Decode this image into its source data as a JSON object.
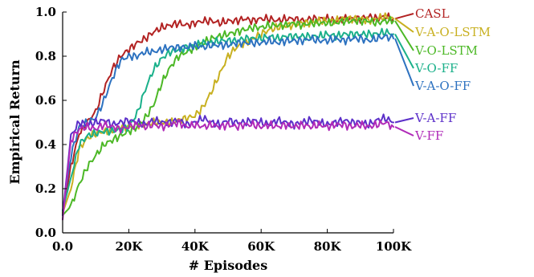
{
  "chart_data": {
    "type": "line",
    "title": "",
    "xlabel": "# Episodes",
    "ylabel": "Empirical Return",
    "xlim": [
      0,
      100000
    ],
    "ylim": [
      0,
      1.0
    ],
    "x_ticks": [
      0,
      20000,
      40000,
      60000,
      80000,
      100000
    ],
    "x_tick_labels": [
      "0.0",
      "20K",
      "40K",
      "60K",
      "80K",
      "100K"
    ],
    "y_ticks": [
      0,
      0.2,
      0.4,
      0.6,
      0.8,
      1.0
    ],
    "y_tick_labels": [
      "0.0",
      "0.2",
      "0.4",
      "0.6",
      "0.8",
      "1.0"
    ],
    "grid": false,
    "legend_placement": "right",
    "x": [
      0,
      2500,
      5000,
      7500,
      10000,
      12500,
      15000,
      17500,
      20000,
      22500,
      25000,
      27500,
      30000,
      32500,
      35000,
      37500,
      40000,
      42500,
      45000,
      47500,
      50000,
      52500,
      55000,
      57500,
      60000,
      62500,
      65000,
      67500,
      70000,
      72500,
      75000,
      77500,
      80000,
      82500,
      85000,
      87500,
      90000,
      92500,
      95000,
      97500,
      100000
    ],
    "series": [
      {
        "name": "CASL",
        "color": "#b22222",
        "values": [
          0.09,
          0.3,
          0.45,
          0.5,
          0.55,
          0.65,
          0.74,
          0.8,
          0.83,
          0.86,
          0.88,
          0.91,
          0.93,
          0.94,
          0.95,
          0.94,
          0.95,
          0.96,
          0.96,
          0.95,
          0.96,
          0.96,
          0.97,
          0.96,
          0.97,
          0.97,
          0.96,
          0.97,
          0.97,
          0.96,
          0.97,
          0.97,
          0.97,
          0.96,
          0.97,
          0.97,
          0.97,
          0.98,
          0.97,
          0.98,
          0.97
        ]
      },
      {
        "name": "V-A-O-LSTM",
        "color": "#c8b020",
        "values": [
          0.09,
          0.2,
          0.38,
          0.43,
          0.45,
          0.46,
          0.46,
          0.48,
          0.48,
          0.49,
          0.49,
          0.5,
          0.5,
          0.5,
          0.51,
          0.52,
          0.53,
          0.57,
          0.64,
          0.72,
          0.8,
          0.84,
          0.86,
          0.88,
          0.9,
          0.92,
          0.93,
          0.94,
          0.94,
          0.95,
          0.95,
          0.96,
          0.96,
          0.96,
          0.97,
          0.97,
          0.97,
          0.96,
          0.97,
          0.98,
          0.97
        ]
      },
      {
        "name": "V-O-LSTM",
        "color": "#4cb826",
        "values": [
          0.08,
          0.12,
          0.22,
          0.3,
          0.35,
          0.4,
          0.42,
          0.44,
          0.46,
          0.48,
          0.52,
          0.58,
          0.68,
          0.75,
          0.8,
          0.82,
          0.84,
          0.86,
          0.88,
          0.89,
          0.9,
          0.91,
          0.92,
          0.93,
          0.93,
          0.94,
          0.94,
          0.94,
          0.95,
          0.94,
          0.95,
          0.95,
          0.95,
          0.95,
          0.96,
          0.96,
          0.96,
          0.96,
          0.95,
          0.96,
          0.96
        ]
      },
      {
        "name": "V-O-FF",
        "color": "#1ab08a",
        "values": [
          0.1,
          0.25,
          0.4,
          0.44,
          0.45,
          0.46,
          0.46,
          0.47,
          0.48,
          0.54,
          0.65,
          0.74,
          0.79,
          0.82,
          0.83,
          0.84,
          0.85,
          0.86,
          0.86,
          0.87,
          0.87,
          0.87,
          0.88,
          0.88,
          0.88,
          0.89,
          0.88,
          0.89,
          0.89,
          0.89,
          0.89,
          0.89,
          0.9,
          0.89,
          0.9,
          0.9,
          0.9,
          0.9,
          0.9,
          0.91,
          0.9
        ]
      },
      {
        "name": "V-A-O-FF",
        "color": "#2d72c0",
        "values": [
          0.1,
          0.35,
          0.48,
          0.5,
          0.52,
          0.6,
          0.7,
          0.78,
          0.8,
          0.8,
          0.82,
          0.82,
          0.83,
          0.84,
          0.84,
          0.84,
          0.85,
          0.84,
          0.85,
          0.85,
          0.85,
          0.86,
          0.86,
          0.86,
          0.86,
          0.87,
          0.86,
          0.87,
          0.87,
          0.87,
          0.88,
          0.87,
          0.87,
          0.88,
          0.87,
          0.88,
          0.88,
          0.87,
          0.88,
          0.89,
          0.88
        ]
      },
      {
        "name": "V-A-FF",
        "color": "#5b2fc9",
        "values": [
          0.08,
          0.44,
          0.5,
          0.49,
          0.5,
          0.51,
          0.49,
          0.5,
          0.51,
          0.5,
          0.49,
          0.51,
          0.5,
          0.5,
          0.51,
          0.49,
          0.5,
          0.52,
          0.5,
          0.49,
          0.51,
          0.5,
          0.5,
          0.51,
          0.5,
          0.49,
          0.51,
          0.5,
          0.49,
          0.5,
          0.51,
          0.5,
          0.49,
          0.5,
          0.51,
          0.5,
          0.5,
          0.49,
          0.51,
          0.52,
          0.5
        ]
      },
      {
        "name": "V-FF",
        "color": "#b02ab8",
        "values": [
          0.06,
          0.42,
          0.47,
          0.48,
          0.47,
          0.49,
          0.48,
          0.47,
          0.48,
          0.49,
          0.48,
          0.49,
          0.48,
          0.49,
          0.5,
          0.48,
          0.49,
          0.48,
          0.49,
          0.48,
          0.49,
          0.48,
          0.49,
          0.49,
          0.48,
          0.49,
          0.48,
          0.49,
          0.48,
          0.49,
          0.48,
          0.49,
          0.48,
          0.49,
          0.49,
          0.48,
          0.49,
          0.48,
          0.49,
          0.5,
          0.48
        ]
      }
    ]
  }
}
